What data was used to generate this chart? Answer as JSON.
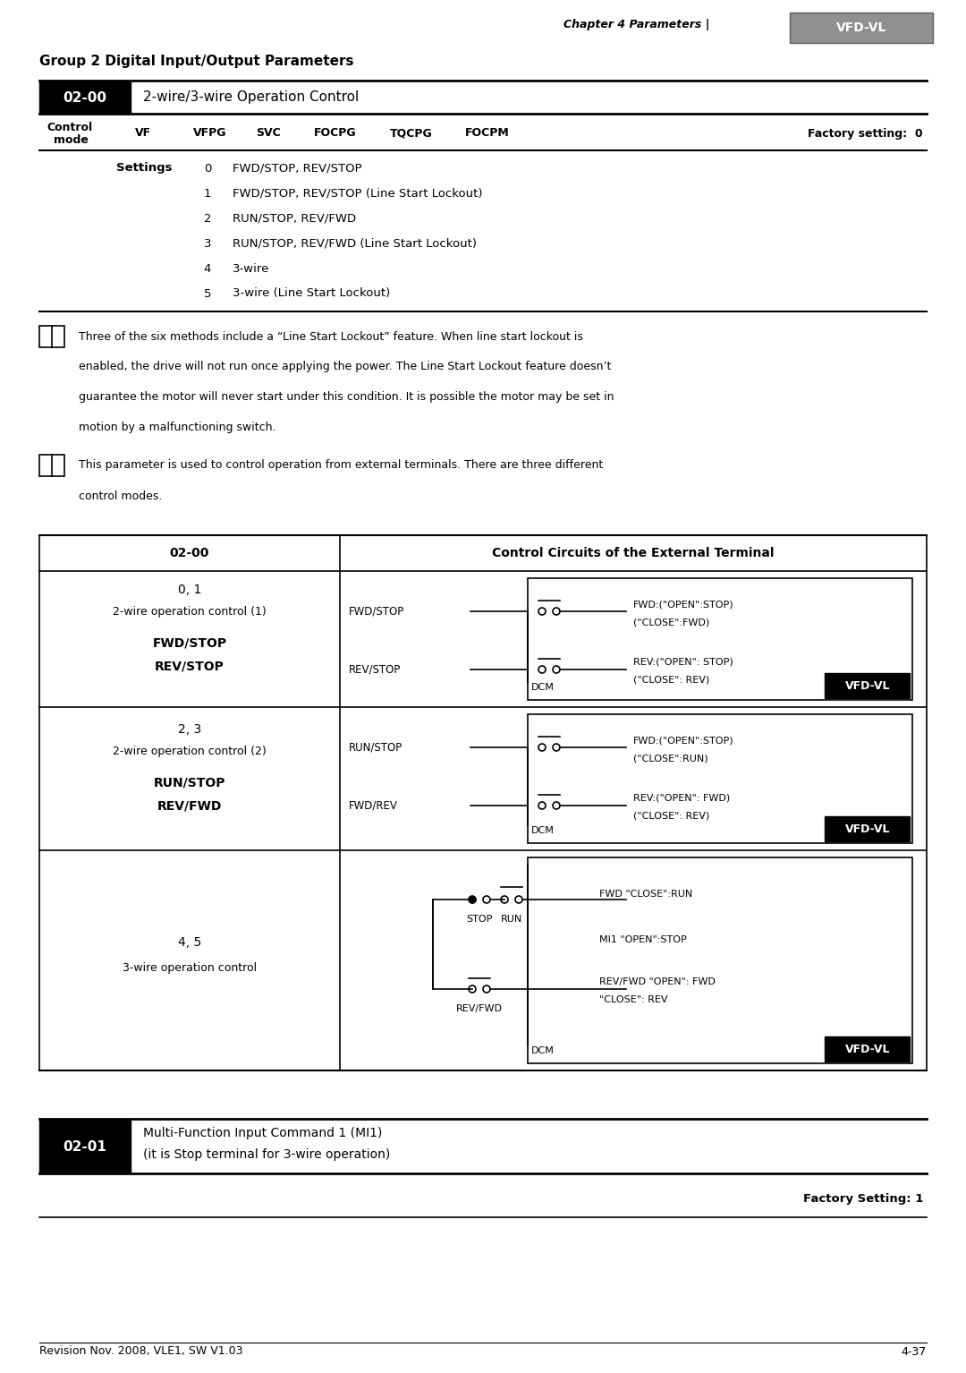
{
  "page_title_italic": "Chapter 4 Parameters |",
  "logo_text": "VFD-VL",
  "group_title": "Group 2 Digital Input/Output Parameters",
  "param_0200_label": "02-00",
  "param_0200_desc": "2-wire/3-wire Operation Control",
  "control_mode_label1": "Control",
  "control_mode_label2": "mode",
  "control_modes": [
    "VF",
    "VFPG",
    "SVC",
    "FOCPG",
    "TQCPG",
    "FOCPM"
  ],
  "factory_setting_0": "Factory setting:  0",
  "settings_label": "Settings",
  "settings_rows": [
    [
      "0",
      "FWD/STOP, REV/STOP"
    ],
    [
      "1",
      "FWD/STOP, REV/STOP (Line Start Lockout)"
    ],
    [
      "2",
      "RUN/STOP, REV/FWD"
    ],
    [
      "3",
      "RUN/STOP, REV/FWD (Line Start Lockout)"
    ],
    [
      "4",
      "3-wire"
    ],
    [
      "5",
      "3-wire (Line Start Lockout)"
    ]
  ],
  "note1_lines": [
    "Three of the six methods include a “Line Start Lockout” feature. When line start lockout is",
    "enabled, the drive will not run once applying the power. The Line Start Lockout feature doesn’t",
    "guarantee the motor will never start under this condition. It is possible the motor may be set in",
    "motion by a malfunctioning switch."
  ],
  "note2_lines": [
    "This parameter is used to control operation from external terminals. There are three different",
    "control modes."
  ],
  "tbl_hdr_left": "02-00",
  "tbl_hdr_right": "Control Circuits of the External Terminal",
  "row1_num": "0, 1",
  "row1_sub": "2-wire operation control (1)",
  "row1_b1": "FWD/STOP",
  "row1_b2": "REV/STOP",
  "row1_fwd_label": "FWD/STOP",
  "row1_rev_label": "REV/STOP",
  "row1_fwd_desc1": "FWD:(\"OPEN\":STOP)",
  "row1_fwd_desc2": "(\"CLOSE\":FWD)",
  "row1_rev_desc1": "REV:(\"OPEN\": STOP)",
  "row1_rev_desc2": "(\"CLOSE\": REV)",
  "row2_num": "2, 3",
  "row2_sub": "2-wire operation control (2)",
  "row2_b1": "RUN/STOP",
  "row2_b2": "REV/FWD",
  "row2_run_label": "RUN/STOP",
  "row2_fwdrev_label": "FWD/REV",
  "row2_fwd_desc1": "FWD:(\"OPEN\":STOP)",
  "row2_fwd_desc2": "(\"CLOSE\":RUN)",
  "row2_rev_desc1": "REV:(\"OPEN\": FWD)",
  "row2_rev_desc2": "(\"CLOSE\": REV)",
  "row3_num": "4, 5",
  "row3_sub": "3-wire operation control",
  "row3_stop_label": "STOP",
  "row3_run_label": "RUN",
  "row3_revfwd_label": "REV/FWD",
  "row3_desc1": "FWD \"CLOSE\":RUN",
  "row3_desc2": "MI1 \"OPEN\":STOP",
  "row3_desc3": "REV/FWD \"OPEN\": FWD",
  "row3_desc4": "\"CLOSE\": REV",
  "row3_dcm": "DCM",
  "vfdvl": "VFD-VL",
  "dcm": "DCM",
  "param_0201_label": "02-01",
  "param_0201_desc1": "Multi-Function Input Command 1 (MI1)",
  "param_0201_desc2": "(it is Stop terminal for 3-wire operation)",
  "factory_setting_1": "Factory Setting: 1",
  "footer_left": "Revision Nov. 2008, VLE1, SW V1.03",
  "footer_right": "4-37"
}
